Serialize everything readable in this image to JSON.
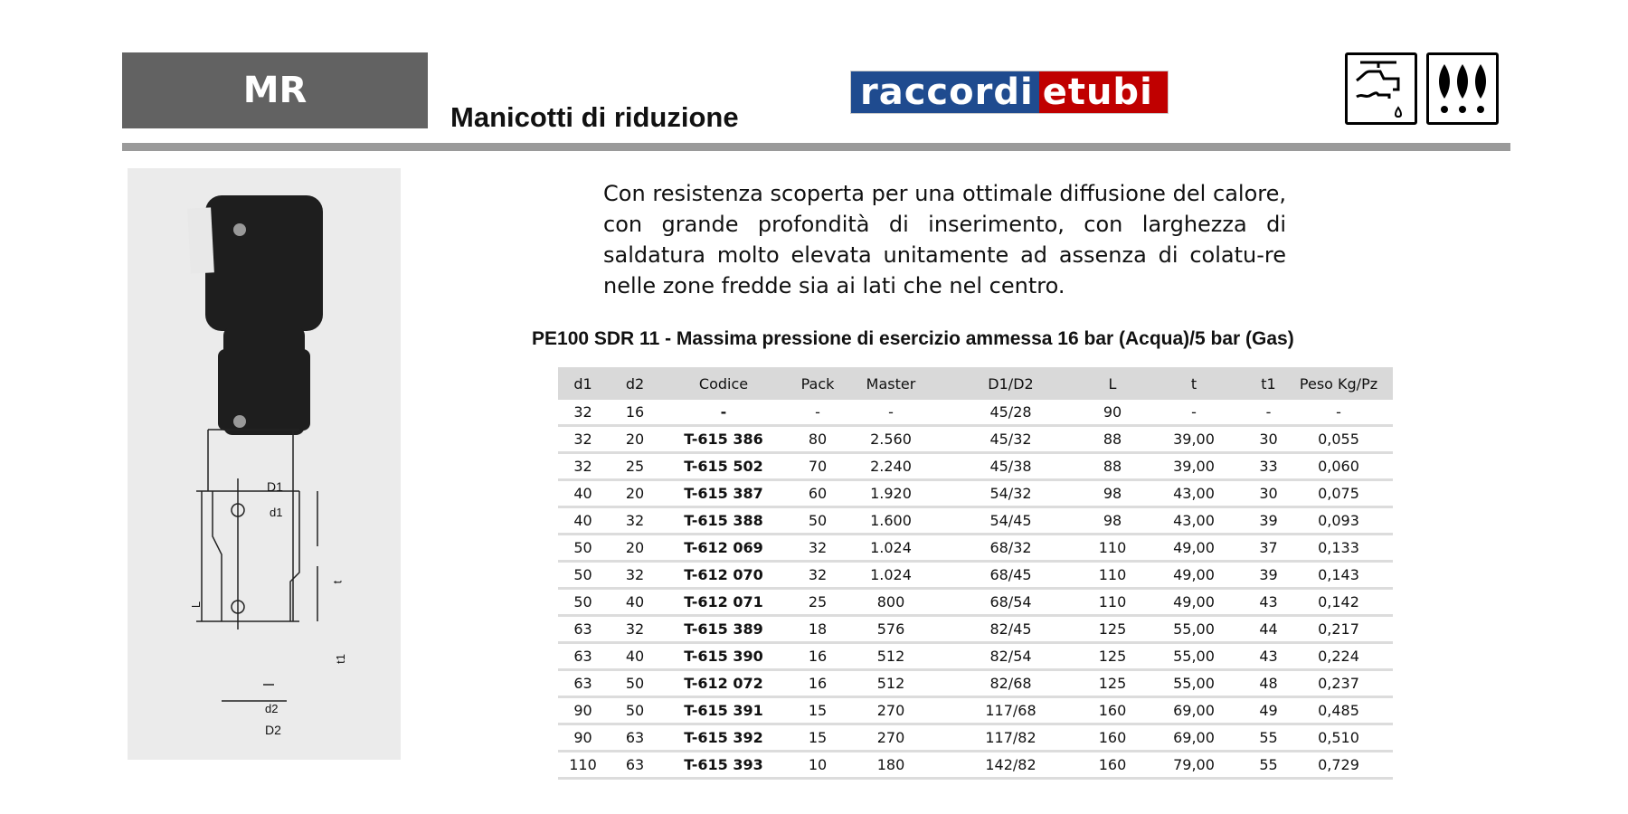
{
  "header": {
    "code": "MR",
    "title": "Manicotti di riduzione",
    "logo": {
      "part1": "raccordi",
      "part2": "etubi",
      "blue": "#1f4b8f",
      "red": "#c00000"
    },
    "icons": [
      "water-tap-icon",
      "gas-flames-icon"
    ]
  },
  "description": "Con resistenza scoperta per una ottimale diffusione del calore, con grande profondità di inserimento, con larghezza di saldatura molto elevata unitamente ad assenza di colatu-re nelle zone fredde sia ai lati che nel centro.",
  "subtitle": "PE100 SDR 11 - Massima pressione di esercizio ammessa 16 bar (Acqua)/5 bar (Gas)",
  "diagram": {
    "D1": "D1",
    "d1": "d1",
    "L": "L",
    "t": "t",
    "t1": "t1",
    "d2": "d2",
    "D2": "D2"
  },
  "table": {
    "headers": [
      "d1",
      "d2",
      "Codice",
      "Pack",
      "Master",
      "D1/D2",
      "L",
      "t",
      "t1",
      "Peso Kg/Pz"
    ],
    "rows": [
      [
        "32",
        "16",
        "-",
        "-",
        "-",
        "45/28",
        "90",
        "-",
        "-",
        "-"
      ],
      [
        "32",
        "20",
        "T-615 386",
        "80",
        "2.560",
        "45/32",
        "88",
        "39,00",
        "30",
        "0,055"
      ],
      [
        "32",
        "25",
        "T-615 502",
        "70",
        "2.240",
        "45/38",
        "88",
        "39,00",
        "33",
        "0,060"
      ],
      [
        "40",
        "20",
        "T-615 387",
        "60",
        "1.920",
        "54/32",
        "98",
        "43,00",
        "30",
        "0,075"
      ],
      [
        "40",
        "32",
        "T-615 388",
        "50",
        "1.600",
        "54/45",
        "98",
        "43,00",
        "39",
        "0,093"
      ],
      [
        "50",
        "20",
        "T-612 069",
        "32",
        "1.024",
        "68/32",
        "110",
        "49,00",
        "37",
        "0,133"
      ],
      [
        "50",
        "32",
        "T-612 070",
        "32",
        "1.024",
        "68/45",
        "110",
        "49,00",
        "39",
        "0,143"
      ],
      [
        "50",
        "40",
        "T-612 071",
        "25",
        "800",
        "68/54",
        "110",
        "49,00",
        "43",
        "0,142"
      ],
      [
        "63",
        "32",
        "T-615 389",
        "18",
        "576",
        "82/45",
        "125",
        "55,00",
        "44",
        "0,217"
      ],
      [
        "63",
        "40",
        "T-615 390",
        "16",
        "512",
        "82/54",
        "125",
        "55,00",
        "43",
        "0,224"
      ],
      [
        "63",
        "50",
        "T-612 072",
        "16",
        "512",
        "82/68",
        "125",
        "55,00",
        "48",
        "0,237"
      ],
      [
        "90",
        "50",
        "T-615 391",
        "15",
        "270",
        "117/68",
        "160",
        "69,00",
        "49",
        "0,485"
      ],
      [
        "90",
        "63",
        "T-615 392",
        "15",
        "270",
        "117/82",
        "160",
        "69,00",
        "55",
        "0,510"
      ],
      [
        "110",
        "63",
        "T-615 393",
        "10",
        "180",
        "142/82",
        "160",
        "79,00",
        "55",
        "0,729"
      ]
    ]
  }
}
